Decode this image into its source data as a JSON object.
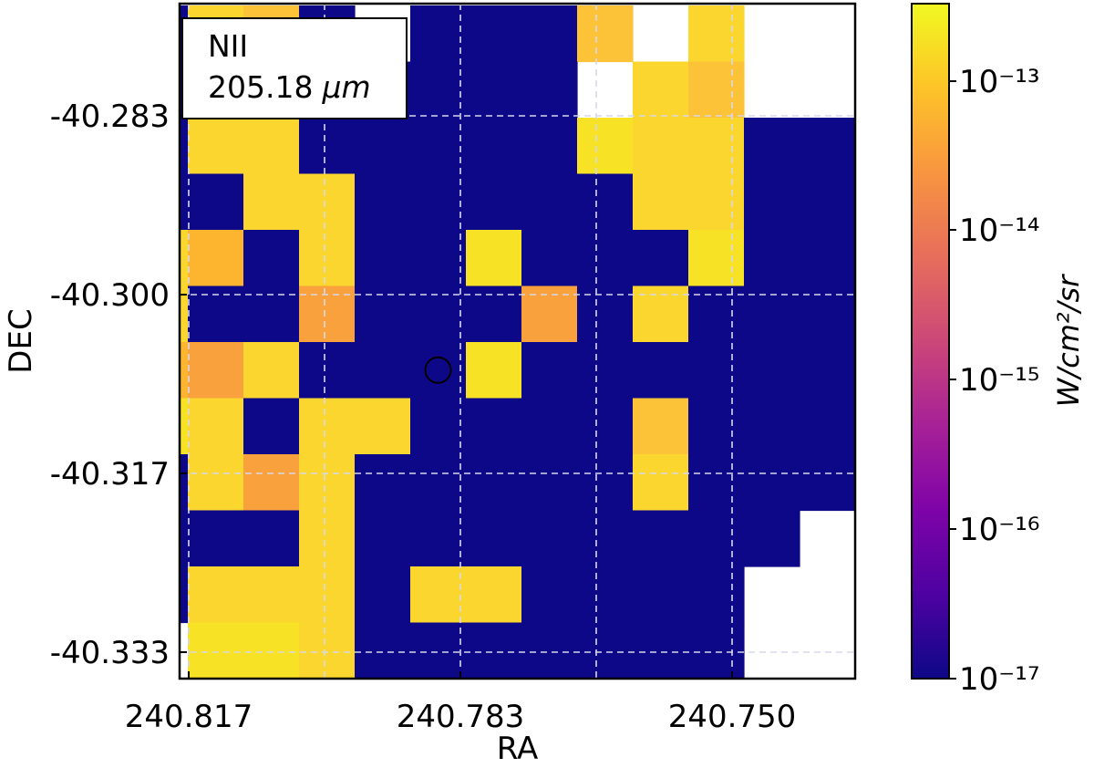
{
  "chart_data": {
    "type": "heatmap",
    "title": "",
    "xlabel": "RA",
    "ylabel": "DEC",
    "x_ticks": [
      "240.817",
      "240.783",
      "240.750"
    ],
    "y_ticks": [
      "-40.283",
      "-40.300",
      "-40.317",
      "-40.333"
    ],
    "grid": true,
    "scale": "log",
    "annotation": {
      "line": "NII",
      "wavelength": "205.18",
      "unit": "μm"
    },
    "colorbar": {
      "label": "W/cm²/sr",
      "ticks": [
        "10⁻¹³",
        "10⁻¹⁴",
        "10⁻¹⁵",
        "10⁻¹⁶",
        "10⁻¹⁷"
      ],
      "colormap": "plasma",
      "range": [
        1e-17,
        3e-13
      ]
    },
    "marker": {
      "type": "circle",
      "row": 6,
      "col": 6
    },
    "level_colors": {
      "b": "#0d0887",
      "y": "#f0f921",
      "Y": "#f7e225",
      "G": "#fbd62e",
      "O": "#fcc338",
      "M": "#fdb52f",
      "R": "#f8a13d"
    },
    "grid_rows": [
      "-bGOb-bbbO-G--",
      "-bGGbbbbb-GO--",
      "bbGGbbbbbYGGbb",
      "GbbGGbbbbbGGbb",
      "RGMbGbbYbbbYbb",
      "bGbbRbbbRbGbbb",
      "bMRGbbbYbbbbbb",
      "bYGbGGbbbbObbb",
      "bbGRGbbbbbGbbb",
      "bbbbGbbbbbbbb-",
      "-bGGGbGGbbbb--",
      "--YYGbbbbbbb--"
    ]
  }
}
